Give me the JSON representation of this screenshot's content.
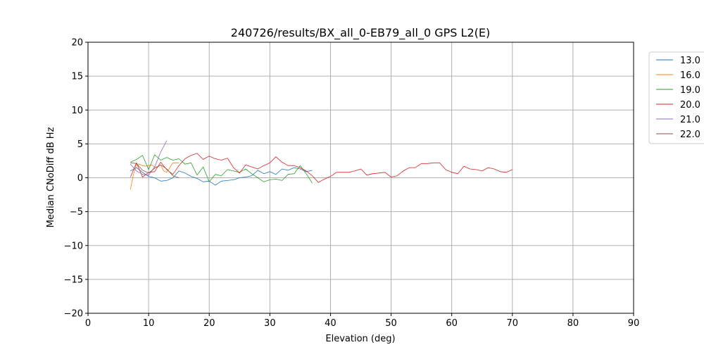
{
  "chart_data": {
    "type": "line",
    "title": "240726/results/BX_all_0-EB79_all_0 GPS L2(E)",
    "xlabel": "Elevation (deg)",
    "ylabel": "Median CNoDiff dB Hz",
    "xlim": [
      0,
      90
    ],
    "ylim": [
      -20,
      20
    ],
    "xticks": [
      0,
      10,
      20,
      30,
      40,
      50,
      60,
      70,
      80,
      90
    ],
    "yticks": [
      -20,
      -15,
      -10,
      -5,
      0,
      5,
      10,
      15,
      20
    ],
    "grid": true,
    "legend_position": "outside-right-top",
    "series": [
      {
        "name": "13.0",
        "color": "#1f77b4",
        "x": [
          7,
          8,
          9,
          10,
          11,
          12,
          13,
          14,
          15,
          16,
          17,
          18,
          19,
          20,
          21,
          22,
          23,
          24,
          25,
          26,
          27,
          28,
          29,
          30,
          31,
          32,
          33,
          34,
          35,
          36,
          37
        ],
        "y": [
          1.0,
          1.5,
          0.8,
          0.2,
          0.0,
          -0.5,
          -0.4,
          0.0,
          1.0,
          0.7,
          0.2,
          -0.1,
          -0.6,
          -0.5,
          -1.1,
          -0.5,
          -0.4,
          -0.3,
          0.0,
          0.1,
          0.3,
          1.1,
          0.6,
          0.9,
          0.5,
          1.3,
          1.1,
          1.5,
          1.3,
          0.9,
          1.1
        ]
      },
      {
        "name": "16.0",
        "color": "#ff7f0e",
        "x": [
          7,
          7.5,
          8,
          8.5,
          9,
          9.5,
          10,
          10.5,
          11,
          11.5,
          12,
          12.5,
          13,
          13.5,
          14,
          14.5,
          15
        ],
        "y": [
          -1.7,
          0.5,
          2.0,
          2.0,
          1.8,
          1.7,
          1.8,
          1.9,
          1.6,
          1.6,
          1.9,
          1.0,
          0.8,
          1.5,
          2.2,
          2.2,
          2.2
        ]
      },
      {
        "name": "19.0",
        "color": "#2ca02c",
        "x": [
          7,
          8,
          9,
          10,
          11,
          12,
          13,
          14,
          15,
          16,
          17,
          18,
          19,
          20,
          21,
          22,
          23,
          24,
          25,
          26,
          27,
          28,
          29,
          30,
          31,
          32,
          33,
          34,
          35,
          36,
          37
        ],
        "y": [
          2.3,
          2.7,
          3.3,
          1.2,
          3.4,
          2.6,
          3.0,
          2.6,
          2.8,
          2.0,
          2.2,
          0.4,
          1.6,
          -0.6,
          0.5,
          0.3,
          1.2,
          1.0,
          0.8,
          1.3,
          0.6,
          0.0,
          -0.6,
          -0.3,
          -0.2,
          -0.4,
          0.5,
          0.6,
          1.8,
          0.6,
          -0.8
        ]
      },
      {
        "name": "20.0",
        "color": "#d62728",
        "x": [
          7,
          8,
          9,
          10,
          11,
          12,
          13,
          14,
          15,
          16,
          17,
          18,
          19,
          20,
          21,
          22,
          23,
          24,
          25,
          26,
          27,
          28,
          29,
          30,
          31,
          32,
          33,
          34,
          35,
          36,
          37,
          38,
          39,
          40,
          41,
          42,
          43,
          44,
          45,
          46,
          47,
          48,
          49,
          50,
          51,
          52,
          53,
          54,
          55,
          56,
          57,
          58,
          59,
          60,
          61,
          62,
          63,
          64,
          65,
          66,
          67,
          68,
          69,
          70
        ],
        "y": [
          0.1,
          2.2,
          0.1,
          0.8,
          0.9,
          2.3,
          1.2,
          0.5,
          1.8,
          2.8,
          3.3,
          3.6,
          2.7,
          3.2,
          2.8,
          2.6,
          2.9,
          1.5,
          0.7,
          1.9,
          1.6,
          1.3,
          1.8,
          2.2,
          3.1,
          2.3,
          1.8,
          1.8,
          1.5,
          1.0,
          0.3,
          -0.7,
          -0.2,
          0.2,
          0.8,
          0.8,
          0.8,
          1.0,
          1.3,
          0.4,
          0.6,
          0.7,
          0.8,
          0.1,
          0.3,
          1.0,
          1.5,
          1.5,
          2.1,
          2.1,
          2.2,
          2.2,
          1.2,
          0.8,
          0.6,
          1.7,
          1.3,
          1.2,
          1.0,
          1.5,
          1.3,
          0.9,
          0.8,
          1.2
        ]
      },
      {
        "name": "21.0",
        "color": "#9467bd",
        "x": [
          7,
          8,
          9,
          10,
          11,
          12,
          13
        ],
        "y": [
          2.0,
          1.0,
          0.5,
          0.4,
          1.6,
          3.8,
          5.5
        ]
      },
      {
        "name": "22.0",
        "color": "#8c564b",
        "x": [
          7,
          8,
          9,
          10,
          11,
          12,
          13,
          14,
          15
        ],
        "y": [
          2.2,
          2.1,
          1.1,
          0.7,
          1.4,
          1.9,
          1.3,
          0.3,
          0.0
        ]
      }
    ]
  }
}
